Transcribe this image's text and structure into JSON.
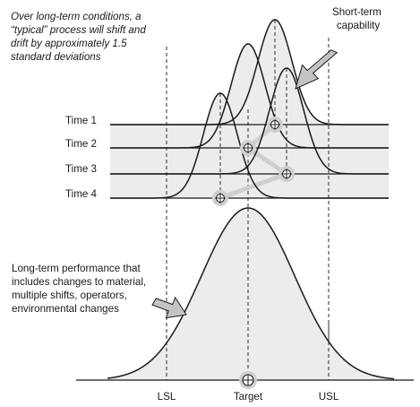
{
  "annotations": {
    "top_note": [
      "Over long-term conditions, a",
      "“typical” process will shift and",
      "drift by approximately 1.5",
      "standard deviations"
    ],
    "short_term": [
      "Short-term",
      "capability"
    ],
    "long_term": [
      "Long-term performance that",
      "includes changes to material,",
      "multiple shifts, operators,",
      "environmental changes"
    ]
  },
  "time_labels": [
    "Time 1",
    "Time 2",
    "Time 3",
    "Time 4"
  ],
  "axis_labels": {
    "lsl": "LSL",
    "target": "Target",
    "usl": "USL"
  },
  "colors": {
    "line": "#1a1a1a",
    "fill": "#ececec",
    "highlight": "#cfcfcf",
    "arrow_fill": "#c4c4c4"
  }
}
